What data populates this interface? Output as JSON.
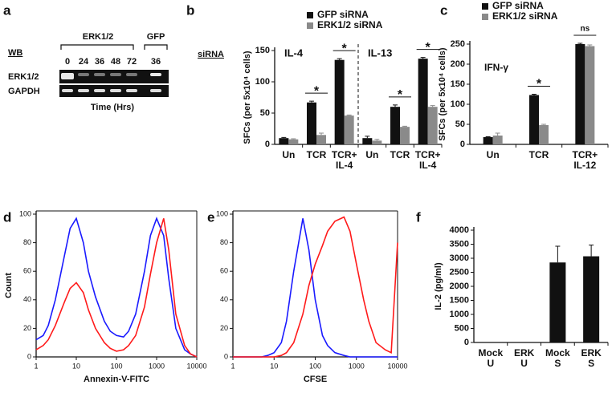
{
  "blot": {
    "panel": "a",
    "method": "WB",
    "groups": [
      "ERK1/2",
      "GFP"
    ],
    "lanes": [
      "0",
      "24",
      "36",
      "48",
      "72",
      "36"
    ],
    "rows": [
      "ERK1/2",
      "GAPDH"
    ],
    "xlabel": "Time (Hrs)"
  },
  "chart_data": [
    {
      "panel": "b",
      "type": "bar",
      "side_label": "siRNA",
      "ylabel": "SFCs (per 5x10⁴ cells)",
      "categories": [
        [
          "Un"
        ],
        [
          "TCR"
        ],
        [
          "TCR+",
          "IL-4"
        ],
        [
          "Un"
        ],
        [
          "TCR"
        ],
        [
          "TCR+",
          "IL-4"
        ]
      ],
      "sections": [
        {
          "label": "IL-4",
          "start": 0
        },
        {
          "label": "IL-13",
          "start": 3
        }
      ],
      "series": [
        {
          "name": "GFP siRNA",
          "color": "#111111",
          "values": [
            10,
            67,
            135,
            10,
            60,
            137
          ],
          "errors": [
            1,
            2,
            2,
            3,
            3,
            2
          ]
        },
        {
          "name": "ERK1/2 siRNA",
          "color": "#8a8a8a",
          "values": [
            8,
            15,
            46,
            6,
            28,
            60
          ],
          "errors": [
            1,
            3,
            1,
            2,
            1,
            2
          ]
        }
      ],
      "annotations": [
        {
          "text": "*",
          "category": 1
        },
        {
          "text": "*",
          "category": 2
        },
        {
          "text": "*",
          "category": 4
        },
        {
          "text": "*",
          "category": 5
        }
      ],
      "ylim": [
        0,
        150
      ],
      "yticks": [
        0,
        50,
        100,
        150
      ]
    },
    {
      "panel": "c",
      "type": "bar",
      "inner_label": "IFN-γ",
      "ylabel": "SFCs (per 5x10⁴ cells)",
      "categories": [
        [
          "Un"
        ],
        [
          "TCR"
        ],
        [
          "TCR+",
          "IL-12"
        ]
      ],
      "series": [
        {
          "name": "GFP siRNA",
          "color": "#111111",
          "values": [
            18,
            123,
            250
          ],
          "errors": [
            1,
            2,
            2
          ]
        },
        {
          "name": "ERK1/2 siRNA",
          "color": "#8a8a8a",
          "values": [
            22,
            48,
            245
          ],
          "errors": [
            6,
            2,
            3
          ]
        }
      ],
      "annotations": [
        {
          "text": "*",
          "category": 1
        },
        {
          "text": "ns",
          "category": 2
        }
      ],
      "ylim": [
        0,
        250
      ],
      "yticks": [
        0,
        50,
        100,
        150,
        200,
        250
      ]
    },
    {
      "panel": "d",
      "type": "line",
      "xscale": "log",
      "ylabel": "Count",
      "xlabel": "Annexin-V-FITC",
      "x": [
        1,
        1.5,
        2,
        3,
        5,
        7,
        10,
        15,
        20,
        30,
        50,
        70,
        100,
        150,
        200,
        300,
        500,
        700,
        1000,
        1500,
        2000,
        3000,
        5000,
        7000,
        10000
      ],
      "series": [
        {
          "color": "#1a1aff",
          "values": [
            12,
            15,
            22,
            40,
            70,
            90,
            97,
            80,
            60,
            42,
            25,
            18,
            15,
            14,
            18,
            30,
            60,
            85,
            97,
            85,
            55,
            20,
            5,
            2,
            0
          ]
        },
        {
          "color": "#ff1a1a",
          "values": [
            5,
            8,
            12,
            22,
            38,
            48,
            52,
            45,
            33,
            20,
            10,
            6,
            4,
            5,
            8,
            15,
            35,
            58,
            80,
            97,
            75,
            30,
            8,
            2,
            0
          ]
        }
      ],
      "xlim": [
        1,
        10000
      ],
      "xticks": [
        1,
        10,
        100,
        1000,
        10000
      ],
      "ylim": [
        0,
        100
      ],
      "yticks": [
        0,
        20,
        40,
        60,
        80,
        100
      ]
    },
    {
      "panel": "e",
      "type": "line",
      "xscale": "log",
      "xlabel": "CFSE",
      "x": [
        1,
        1.5,
        2,
        3,
        5,
        7,
        10,
        15,
        20,
        30,
        50,
        70,
        100,
        150,
        200,
        300,
        500,
        700,
        1000,
        1500,
        2000,
        3000,
        5000,
        7000,
        10000
      ],
      "series": [
        {
          "color": "#1a1aff",
          "values": [
            0,
            0,
            0,
            0,
            0,
            1,
            3,
            10,
            25,
            60,
            97,
            75,
            40,
            15,
            8,
            3,
            1,
            0,
            0,
            0,
            0,
            0,
            0,
            0,
            0
          ]
        },
        {
          "color": "#ff1a1a",
          "values": [
            0,
            0,
            0,
            0,
            0,
            0,
            0,
            1,
            3,
            10,
            30,
            50,
            65,
            78,
            88,
            95,
            98,
            88,
            65,
            40,
            25,
            10,
            5,
            3,
            80
          ]
        }
      ],
      "xlim": [
        1,
        10000
      ],
      "xticks": [
        1,
        10,
        100,
        1000,
        10000
      ],
      "ylim": [
        0,
        100
      ],
      "yticks": [
        0,
        20,
        40,
        60,
        80,
        100
      ]
    },
    {
      "panel": "f",
      "type": "bar",
      "ylabel": "IL-2 (pg/ml)",
      "categories": [
        [
          "Mock",
          "U"
        ],
        [
          "ERK",
          "U"
        ],
        [
          "Mock",
          "S"
        ],
        [
          "ERK",
          "S"
        ]
      ],
      "series": [
        {
          "color": "#111111",
          "values": [
            0,
            0,
            2850,
            3070
          ],
          "errors": [
            0,
            0,
            580,
            400
          ]
        }
      ],
      "ylim": [
        0,
        4000
      ],
      "yticks": [
        0,
        500,
        1000,
        1500,
        2000,
        2500,
        3000,
        3500,
        4000
      ]
    }
  ]
}
